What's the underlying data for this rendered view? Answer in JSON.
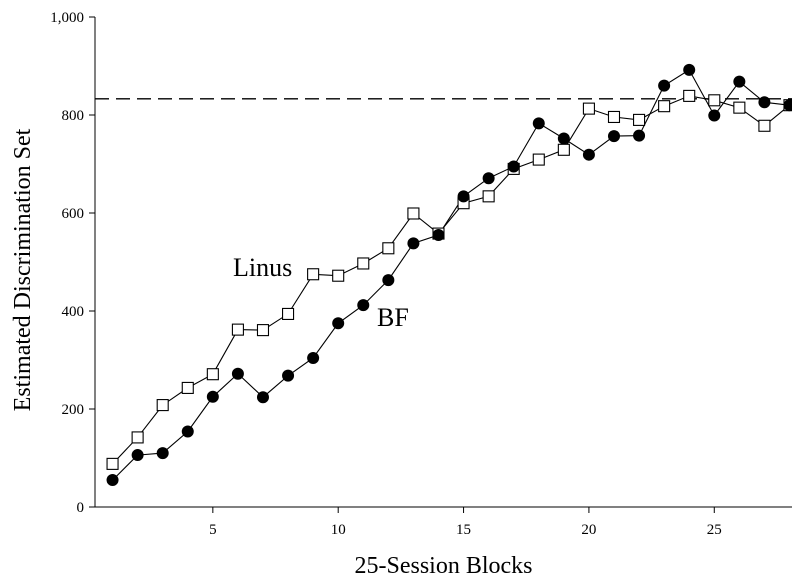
{
  "chart_data": {
    "type": "line",
    "title": "",
    "xlabel": "25-Session Blocks",
    "ylabel": "Estimated Discrimination Set",
    "xlim": [
      0.3,
      28.1
    ],
    "ylim": [
      0,
      1000
    ],
    "xticks": [
      5,
      10,
      15,
      20,
      25
    ],
    "yticks": [
      0,
      200,
      400,
      600,
      800,
      1000
    ],
    "xtick_labels": [
      "5",
      "10",
      "15",
      "20",
      "25"
    ],
    "ytick_labels": [
      "0",
      "200",
      "400",
      "600",
      "800",
      "1,000"
    ],
    "reference_line": {
      "y": 833,
      "style": "dashed"
    },
    "grid": false,
    "legend": "inline labels",
    "series": [
      {
        "name": "Linus",
        "marker": "open-square",
        "x": [
          1,
          2,
          3,
          4,
          5,
          6,
          7,
          8,
          9,
          10,
          11,
          12,
          13,
          14,
          15,
          16,
          17,
          18,
          19,
          20,
          21,
          22,
          23,
          24,
          25,
          26,
          27,
          28
        ],
        "values": [
          88,
          142,
          208,
          243,
          271,
          362,
          361,
          394,
          475,
          472,
          497,
          528,
          599,
          558,
          620,
          634,
          690,
          709,
          729,
          813,
          796,
          790,
          818,
          839,
          830,
          815,
          778,
          820
        ]
      },
      {
        "name": "BF",
        "marker": "filled-circle",
        "x": [
          1,
          2,
          3,
          4,
          5,
          6,
          7,
          8,
          9,
          10,
          11,
          12,
          13,
          14,
          15,
          16,
          17,
          18,
          19,
          20,
          21,
          22,
          23,
          24,
          25,
          26,
          27,
          28
        ],
        "values": [
          55,
          106,
          110,
          154,
          225,
          272,
          224,
          268,
          304,
          375,
          412,
          463,
          538,
          555,
          634,
          671,
          695,
          783,
          752,
          719,
          757,
          758,
          860,
          892,
          799,
          868,
          826,
          820
        ]
      }
    ]
  }
}
